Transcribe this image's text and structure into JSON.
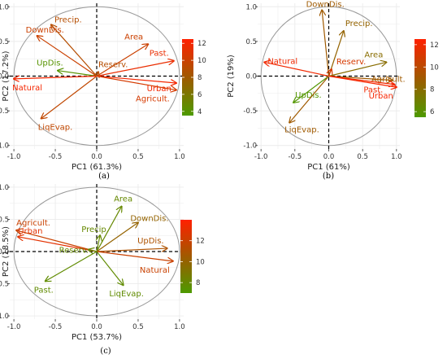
{
  "figure": {
    "captions": [
      "(a)",
      "(b)",
      "(c)"
    ]
  },
  "chart_data": [
    {
      "type": "scatter",
      "title": "",
      "xlabel": "PC1 (61.3%)",
      "ylabel": "PC2 (17.2%)",
      "xlim": [
        -1.05,
        1.05
      ],
      "ylim": [
        -1.05,
        1.05
      ],
      "xticks": [
        -1.0,
        -0.5,
        0.0,
        0.5,
        1.0
      ],
      "yticks": [
        -1.0,
        -0.5,
        0.0,
        0.5,
        1.0
      ],
      "tick_labels": [
        "-1.0",
        "-0.5",
        "0.0",
        "0.5",
        "1.0"
      ],
      "grid": true,
      "unit_circle": true,
      "colorbar": {
        "min": 3.5,
        "max": 12.5,
        "ticks": [
          4,
          6,
          8,
          10,
          12
        ],
        "low_color": "#4d9a00",
        "mid_color": "#a05a00",
        "high_color": "#ff2000"
      },
      "variables": [
        {
          "name": "Precip.",
          "x": -0.55,
          "y": 0.74,
          "contrib": 9
        },
        {
          "name": "DownDis.",
          "x": -0.72,
          "y": 0.58,
          "contrib": 10
        },
        {
          "name": "Area",
          "x": 0.62,
          "y": 0.46,
          "contrib": 10
        },
        {
          "name": "Past.",
          "x": 0.93,
          "y": 0.22,
          "contrib": 11.5
        },
        {
          "name": "UpDis.",
          "x": -0.47,
          "y": 0.08,
          "contrib": 4
        },
        {
          "name": "Reserv.",
          "x": 0.02,
          "y": 0.06,
          "contrib": 9
        },
        {
          "name": "Natural",
          "x": -1.0,
          "y": -0.04,
          "contrib": 12
        },
        {
          "name": "Urban",
          "x": 0.96,
          "y": -0.1,
          "contrib": 12
        },
        {
          "name": "Agricult.",
          "x": 0.96,
          "y": -0.2,
          "contrib": 10.5
        },
        {
          "name": "LiqEvap.",
          "x": -0.67,
          "y": -0.61,
          "contrib": 9.5
        }
      ]
    },
    {
      "type": "scatter",
      "title": "",
      "xlabel": "PC1 (61%)",
      "ylabel": "PC2 (19%)",
      "xlim": [
        -1.05,
        1.05
      ],
      "ylim": [
        -1.05,
        1.05
      ],
      "xticks": [
        -1.0,
        -0.5,
        0.0,
        0.5,
        1.0
      ],
      "yticks": [
        -1.0,
        -0.5,
        0.0,
        0.5,
        1.0
      ],
      "tick_labels": [
        "-1.0",
        "-0.5",
        "0.0",
        "0.5",
        "1.0"
      ],
      "grid": true,
      "unit_circle": true,
      "colorbar": {
        "min": 5.5,
        "max": 12.5,
        "ticks": [
          6,
          8,
          10,
          12
        ],
        "low_color": "#4d9a00",
        "mid_color": "#a05a00",
        "high_color": "#ff2000"
      },
      "variables": [
        {
          "name": "DownDis.",
          "x": -0.1,
          "y": 0.95,
          "contrib": 9
        },
        {
          "name": "Precip.",
          "x": 0.22,
          "y": 0.65,
          "contrib": 8.5
        },
        {
          "name": "Reserv.",
          "x": 0.04,
          "y": 0.1,
          "contrib": 11
        },
        {
          "name": "Area",
          "x": 0.85,
          "y": 0.2,
          "contrib": 8
        },
        {
          "name": "Natural",
          "x": -0.95,
          "y": 0.2,
          "contrib": 12
        },
        {
          "name": "Agricult.",
          "x": 0.94,
          "y": -0.06,
          "contrib": 9
        },
        {
          "name": "Past.",
          "x": 0.97,
          "y": -0.12,
          "contrib": 12
        },
        {
          "name": "Urban",
          "x": 1.0,
          "y": -0.16,
          "contrib": 12.2
        },
        {
          "name": "UpDis.",
          "x": -0.52,
          "y": -0.38,
          "contrib": 5.7
        },
        {
          "name": "LiqEvap.",
          "x": -0.58,
          "y": -0.67,
          "contrib": 9
        }
      ]
    },
    {
      "type": "scatter",
      "title": "",
      "xlabel": "PC1 (53.7%)",
      "ylabel": "PC2 (18.5%)",
      "xlim": [
        -1.05,
        1.05
      ],
      "ylim": [
        -1.05,
        1.05
      ],
      "xticks": [
        -1.0,
        -0.5,
        0.0,
        0.5,
        1.0
      ],
      "yticks": [
        -1.0,
        -0.5,
        0.0,
        0.5,
        1.0
      ],
      "tick_labels": [
        "-1.0",
        "-0.5",
        "0.0",
        "0.5",
        "1.0"
      ],
      "grid": true,
      "unit_circle": true,
      "colorbar": {
        "min": 7,
        "max": 14,
        "ticks": [
          8,
          10,
          12
        ],
        "low_color": "#4d9a00",
        "mid_color": "#a05a00",
        "high_color": "#ff2000"
      },
      "variables": [
        {
          "name": "Area",
          "x": 0.3,
          "y": 0.7,
          "contrib": 8
        },
        {
          "name": "DownDis.",
          "x": 0.5,
          "y": 0.45,
          "contrib": 10
        },
        {
          "name": "Agricult.",
          "x": -0.97,
          "y": 0.33,
          "contrib": 12
        },
        {
          "name": "Urban",
          "x": -0.95,
          "y": 0.23,
          "contrib": 13
        },
        {
          "name": "Precip.",
          "x": 0.04,
          "y": 0.25,
          "contrib": 8
        },
        {
          "name": "Reserv.",
          "x": -0.1,
          "y": 0.03,
          "contrib": 8
        },
        {
          "name": "UpDis.",
          "x": 0.85,
          "y": 0.05,
          "contrib": 11
        },
        {
          "name": "Natural",
          "x": 0.92,
          "y": -0.15,
          "contrib": 12
        },
        {
          "name": "Past.",
          "x": -0.62,
          "y": -0.46,
          "contrib": 7.8
        },
        {
          "name": "LiqEvap.",
          "x": 0.32,
          "y": -0.52,
          "contrib": 7.8
        }
      ]
    }
  ]
}
